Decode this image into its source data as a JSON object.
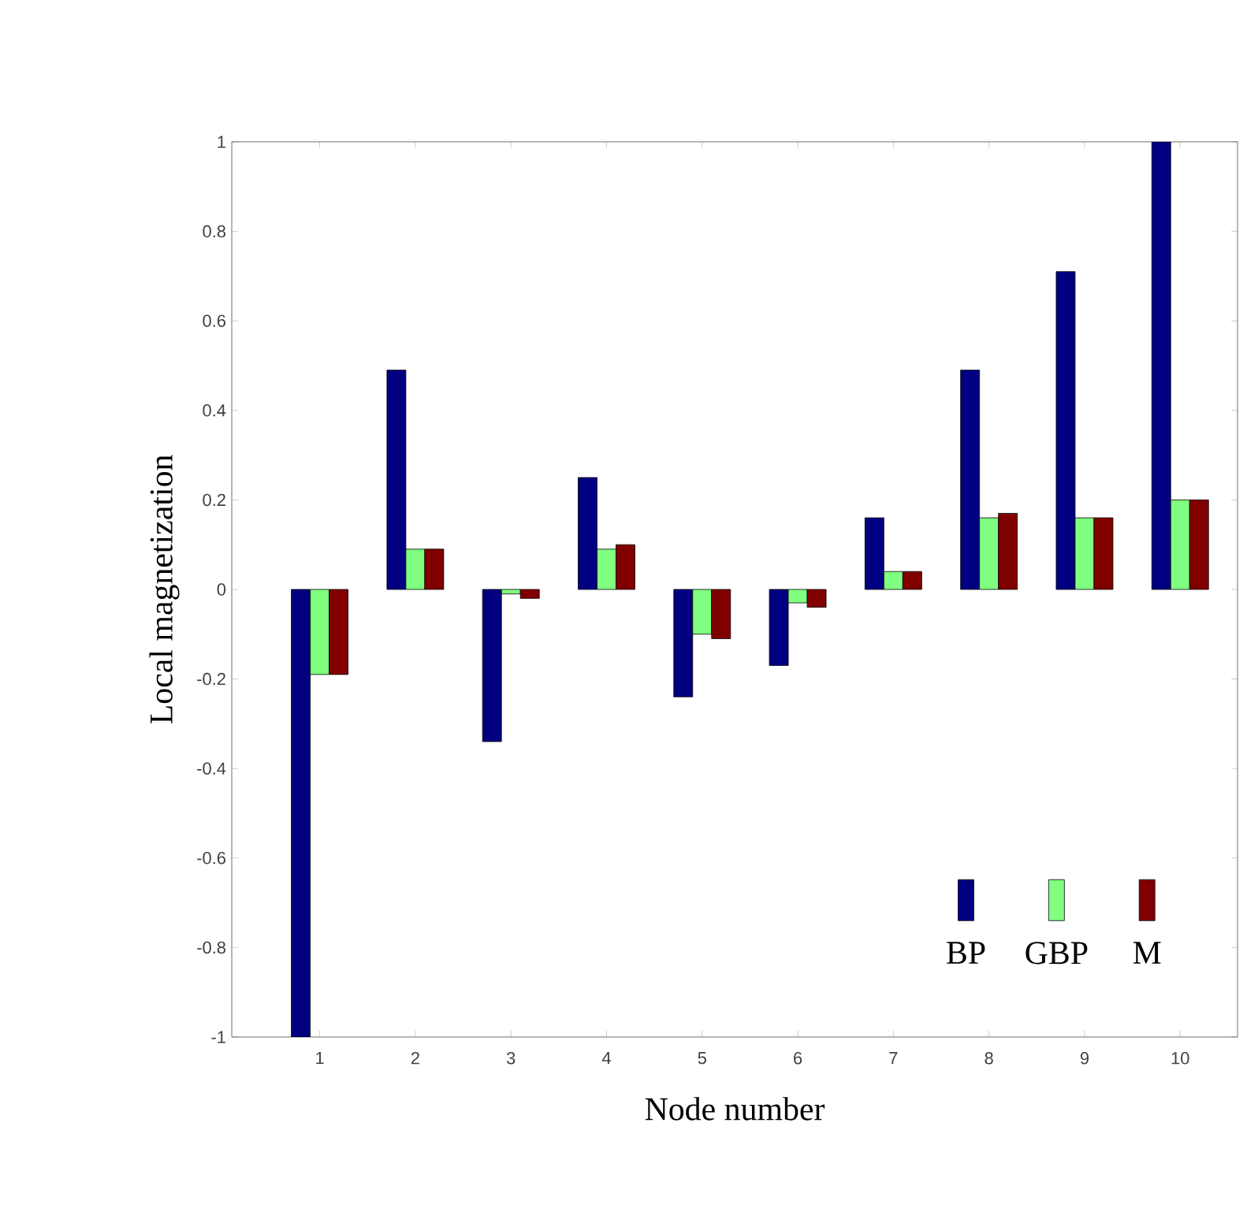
{
  "chart_data": {
    "type": "bar",
    "xlabel": "Node number",
    "ylabel": "Local magnetization",
    "categories": [
      "1",
      "2",
      "3",
      "4",
      "5",
      "6",
      "7",
      "8",
      "9",
      "10"
    ],
    "series": [
      {
        "name": "BP",
        "color": "#000080",
        "values": [
          -1,
          0.49,
          -0.34,
          0.25,
          -0.24,
          -0.17,
          0.16,
          0.49,
          0.71,
          1
        ]
      },
      {
        "name": "GBP",
        "color": "#80ff80",
        "values": [
          -0.19,
          0.09,
          -0.01,
          0.09,
          -0.1,
          -0.03,
          0.04,
          0.16,
          0.16,
          0.2
        ]
      },
      {
        "name": "M",
        "color": "#800000",
        "values": [
          -0.19,
          0.09,
          -0.02,
          0.1,
          -0.11,
          -0.04,
          0.04,
          0.17,
          0.16,
          0.2
        ]
      }
    ],
    "ylim": [
      -1,
      1
    ],
    "yticks": [
      -1,
      -0.8,
      -0.6,
      -0.4,
      -0.2,
      0,
      0.2,
      0.4,
      0.6,
      0.8,
      1
    ],
    "legend": "bottom right",
    "grid": false
  }
}
